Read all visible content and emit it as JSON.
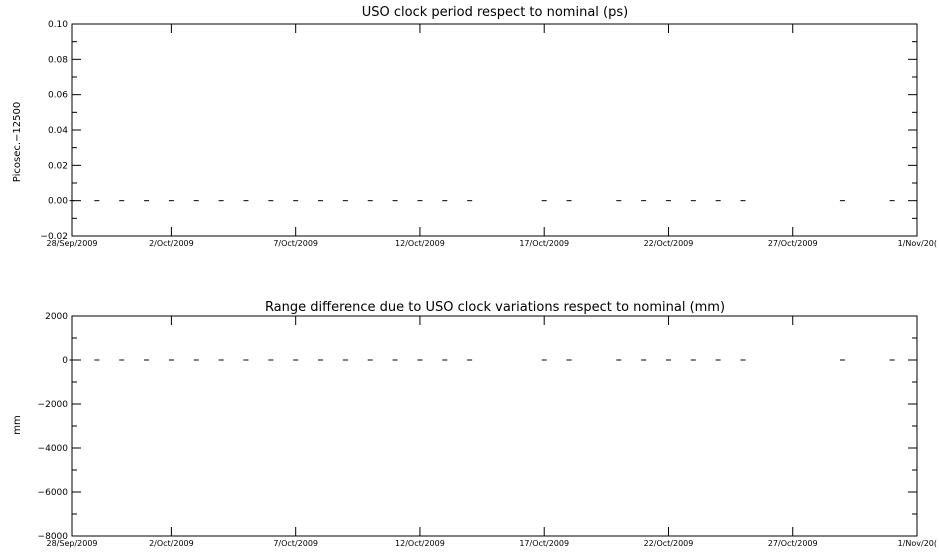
{
  "chart_data": [
    {
      "type": "scatter",
      "title": "USO clock period respect to nominal (ps)",
      "ylabel": "Picosec.−12500",
      "xlabel": "",
      "xlim": [
        "2009-09-28",
        "2009-11-01"
      ],
      "ylim": [
        -0.02,
        0.1
      ],
      "yticks": [
        -0.02,
        0.0,
        0.02,
        0.04,
        0.06,
        0.08,
        0.1
      ],
      "ytick_labels": [
        "−0.02",
        "0.00",
        "0.02",
        "0.04",
        "0.06",
        "0.08",
        "0.10"
      ],
      "xtick_dates": [
        "2009-09-28",
        "2009-10-02",
        "2009-10-07",
        "2009-10-12",
        "2009-10-17",
        "2009-10-22",
        "2009-10-27",
        "2009-11-01"
      ],
      "xtick_labels": [
        "28/Sep/2009",
        "2/Oct/2009",
        "7/Oct/2009",
        "12/Oct/2009",
        "17/Oct/2009",
        "22/Oct/2009",
        "27/Oct/2009",
        "1/Nov/20("
      ],
      "grid": false,
      "series": [
        {
          "marker": "dash",
          "x": [
            "2009-09-28",
            "2009-09-29",
            "2009-09-30",
            "2009-10-01",
            "2009-10-02",
            "2009-10-03",
            "2009-10-04",
            "2009-10-05",
            "2009-10-06",
            "2009-10-07",
            "2009-10-08",
            "2009-10-09",
            "2009-10-10",
            "2009-10-11",
            "2009-10-12",
            "2009-10-13",
            "2009-10-14",
            "2009-10-17",
            "2009-10-18",
            "2009-10-20",
            "2009-10-21",
            "2009-10-22",
            "2009-10-23",
            "2009-10-24",
            "2009-10-25",
            "2009-10-29",
            "2009-10-31"
          ],
          "y": [
            0,
            0,
            0,
            0,
            0,
            0,
            0,
            0,
            0,
            0,
            0,
            0,
            0,
            0,
            0,
            0,
            0,
            0,
            0,
            0,
            0,
            0,
            0,
            0,
            0,
            0,
            0
          ]
        }
      ]
    },
    {
      "type": "scatter",
      "title": "Range difference due to USO clock variations respect to nominal (mm)",
      "ylabel": "mm",
      "xlabel": "",
      "xlim": [
        "2009-09-28",
        "2009-11-01"
      ],
      "ylim": [
        -8000,
        2000
      ],
      "yticks": [
        -8000,
        -6000,
        -4000,
        -2000,
        0,
        2000
      ],
      "ytick_labels": [
        "−8000",
        "−6000",
        "−4000",
        "−2000",
        "0",
        "2000"
      ],
      "xtick_dates": [
        "2009-09-28",
        "2009-10-02",
        "2009-10-07",
        "2009-10-12",
        "2009-10-17",
        "2009-10-22",
        "2009-10-27",
        "2009-11-01"
      ],
      "xtick_labels": [
        "28/Sep/2009",
        "2/Oct/2009",
        "7/Oct/2009",
        "12/Oct/2009",
        "17/Oct/2009",
        "22/Oct/2009",
        "27/Oct/2009",
        "1/Nov/20("
      ],
      "grid": false,
      "series": [
        {
          "marker": "dash",
          "x": [
            "2009-09-28",
            "2009-09-29",
            "2009-09-30",
            "2009-10-01",
            "2009-10-02",
            "2009-10-03",
            "2009-10-04",
            "2009-10-05",
            "2009-10-06",
            "2009-10-07",
            "2009-10-08",
            "2009-10-09",
            "2009-10-10",
            "2009-10-11",
            "2009-10-12",
            "2009-10-13",
            "2009-10-14",
            "2009-10-17",
            "2009-10-18",
            "2009-10-20",
            "2009-10-21",
            "2009-10-22",
            "2009-10-23",
            "2009-10-24",
            "2009-10-25",
            "2009-10-29",
            "2009-10-31"
          ],
          "y": [
            0,
            0,
            0,
            0,
            0,
            0,
            0,
            0,
            0,
            0,
            0,
            0,
            0,
            0,
            0,
            0,
            0,
            0,
            0,
            0,
            0,
            0,
            0,
            0,
            0,
            0,
            0
          ]
        }
      ]
    }
  ]
}
